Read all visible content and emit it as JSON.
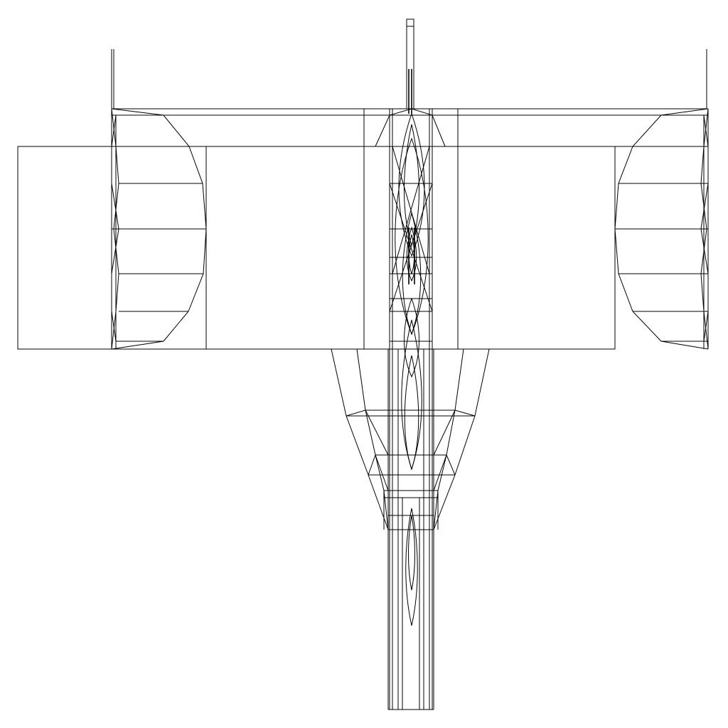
{
  "view": {
    "name": "wireframe-top-view",
    "background_color": "#ffffff",
    "line_color": "#000000"
  }
}
